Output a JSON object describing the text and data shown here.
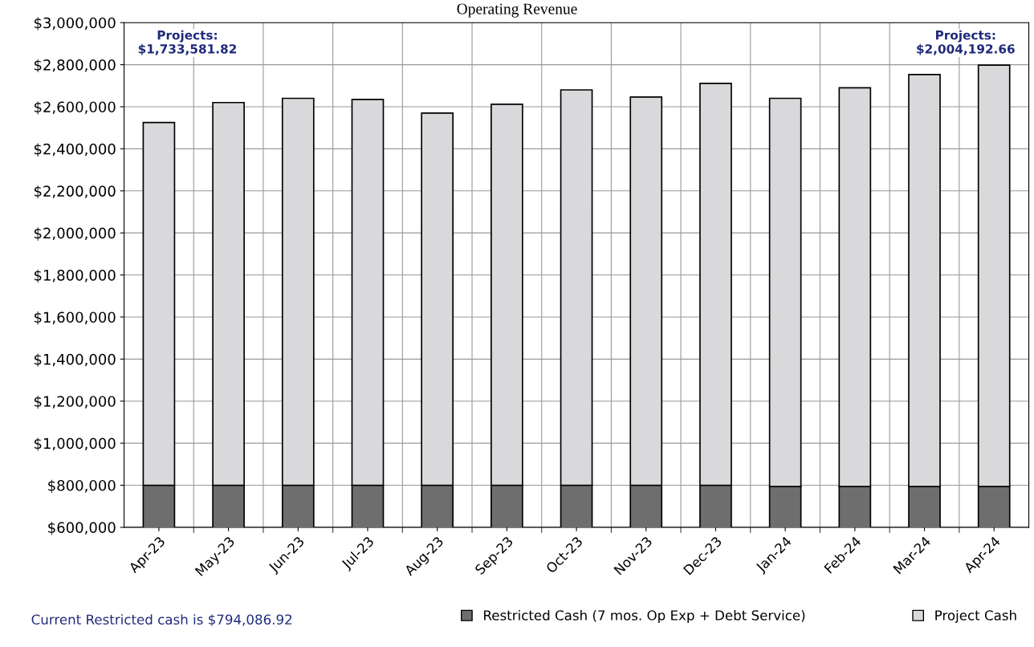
{
  "chart_data": {
    "type": "bar",
    "stacked": true,
    "title": "Operating Revenue",
    "categories": [
      "Apr-23",
      "May-23",
      "Jun-23",
      "Jul-23",
      "Aug-23",
      "Sep-23",
      "Oct-23",
      "Nov-23",
      "Dec-23",
      "Jan-24",
      "Feb-24",
      "Mar-24",
      "Apr-24"
    ],
    "series": [
      {
        "name": "Restricted Cash (7 mos. Op Exp + Debt Service)",
        "color": "#6e6e6e",
        "values": [
          800000,
          800000,
          800000,
          800000,
          800000,
          800000,
          800000,
          800000,
          800000,
          794000,
          794000,
          794000,
          794000
        ]
      },
      {
        "name": "Project Cash",
        "color": "#d9d9dc",
        "values": [
          1725000,
          1820000,
          1840000,
          1835000,
          1770000,
          1812000,
          1880000,
          1846000,
          1911000,
          1846000,
          1896000,
          1959000,
          2004000
        ]
      }
    ],
    "ylim": [
      600000,
      3000000
    ],
    "yticks": [
      {
        "value": 600000,
        "label": "$600,000"
      },
      {
        "value": 800000,
        "label": "$800,000"
      },
      {
        "value": 1000000,
        "label": "$1,000,000"
      },
      {
        "value": 1200000,
        "label": "$1,200,000"
      },
      {
        "value": 1400000,
        "label": "$1,400,000"
      },
      {
        "value": 1600000,
        "label": "$1,600,000"
      },
      {
        "value": 1800000,
        "label": "$1,800,000"
      },
      {
        "value": 2000000,
        "label": "$2,000,000"
      },
      {
        "value": 2200000,
        "label": "$2,200,000"
      },
      {
        "value": 2400000,
        "label": "$2,400,000"
      },
      {
        "value": 2600000,
        "label": "$2,600,000"
      },
      {
        "value": 2800000,
        "label": "$2,800,000"
      },
      {
        "value": 3000000,
        "label": "$3,000,000"
      }
    ],
    "grid": true,
    "legend": "bottom",
    "annotations": [
      "Projects:\n$1,733,581.82",
      "Projects:\n$2,004,192.66",
      "Current Restricted cash is $794,086.92"
    ]
  }
}
